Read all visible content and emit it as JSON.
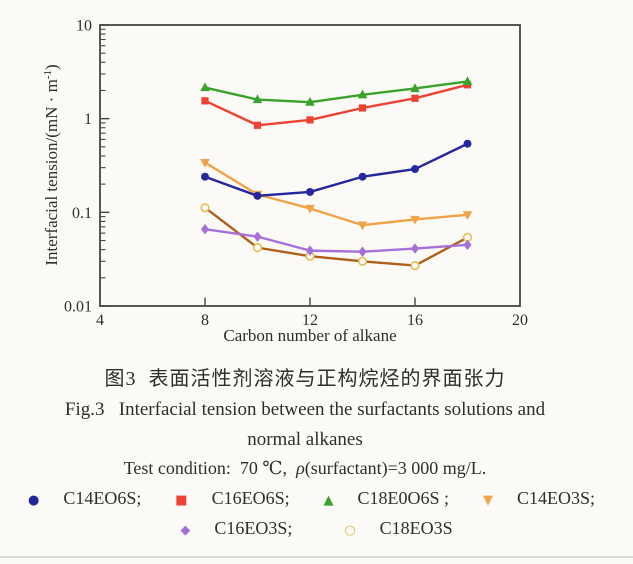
{
  "figure": {
    "caption_zh": "图3  表面活性剂溶液与正构烷烃的界面张力",
    "caption_en_line1": "Fig.3   Interfacial tension between the surfactants solutions and",
    "caption_en_line2": "normal alkanes",
    "test_condition": {
      "prefix": "Test condition:  70 ℃,  ",
      "rho": "ρ",
      "suffix": "(surfactant)=3 000 mg/L."
    }
  },
  "chart_data": {
    "type": "line",
    "title": "",
    "xlabel": "Carbon number of alkane",
    "ylabel": "Interfacial tension/(mN · m-1)",
    "ylabel_parts": {
      "main": "Interfacial tension/(mN · m",
      "sup": "-1",
      "end": ")"
    },
    "y_scale": "log",
    "xlim": [
      4,
      20
    ],
    "ylim": [
      0.01,
      10
    ],
    "x_ticks": [
      4,
      8,
      12,
      16,
      20
    ],
    "x_tick_marks": [
      8,
      12,
      16
    ],
    "y_ticks": [
      10,
      1,
      0.1,
      0.01
    ],
    "grid": false,
    "legend_position": "below",
    "x": [
      8,
      10,
      12,
      14,
      16,
      18
    ],
    "series": [
      {
        "name": "C14EO3S",
        "marker": "triangle-down",
        "color": "#f0a348",
        "values": [
          0.34,
          0.155,
          0.11,
          0.073,
          0.084,
          0.094
        ]
      },
      {
        "name": "C18EO3S",
        "marker": "circle-open",
        "color": "#ad5f1e",
        "marker_color": "#e2bf55",
        "values": [
          0.112,
          0.042,
          0.034,
          0.03,
          0.027,
          0.054
        ]
      },
      {
        "name": "C16EO3S",
        "marker": "diamond",
        "color": "#a571d8",
        "values": [
          0.066,
          0.055,
          0.039,
          0.038,
          0.041,
          0.045
        ]
      },
      {
        "name": "C14EO6S",
        "marker": "circle",
        "color": "#24279d",
        "values": [
          0.24,
          0.15,
          0.165,
          0.24,
          0.29,
          0.54
        ]
      },
      {
        "name": "C16EO6S",
        "marker": "square",
        "color": "#ee4233",
        "values": [
          1.55,
          0.85,
          0.97,
          1.3,
          1.65,
          2.3
        ]
      },
      {
        "name": "C18E0O6S",
        "marker": "triangle-up",
        "color": "#3aa32c",
        "values": [
          2.15,
          1.6,
          1.5,
          1.8,
          2.1,
          2.5
        ]
      }
    ]
  },
  "legend": {
    "rows": [
      [
        {
          "glyph": "●",
          "color": "#24279d",
          "icon": "circle-filled-icon",
          "label": "C14EO6S;"
        },
        {
          "glyph": "■",
          "color": "#ee4233",
          "icon": "square-filled-icon",
          "label": "C16EO6S;"
        },
        {
          "glyph": "▲",
          "color": "#3aa32c",
          "icon": "triangle-up-icon",
          "label": "C18E0O6S ;"
        },
        {
          "glyph": "▼",
          "color": "#f0a348",
          "icon": "triangle-down-icon",
          "label": "C14EO3S;"
        }
      ],
      [
        {
          "glyph": "◆",
          "color": "#a571d8",
          "icon": "diamond-filled-icon",
          "label": "C16EO3S;"
        },
        {
          "glyph": "○",
          "color": "#d9b93f",
          "icon": "circle-open-icon",
          "label": "C18EO3S"
        }
      ]
    ]
  }
}
